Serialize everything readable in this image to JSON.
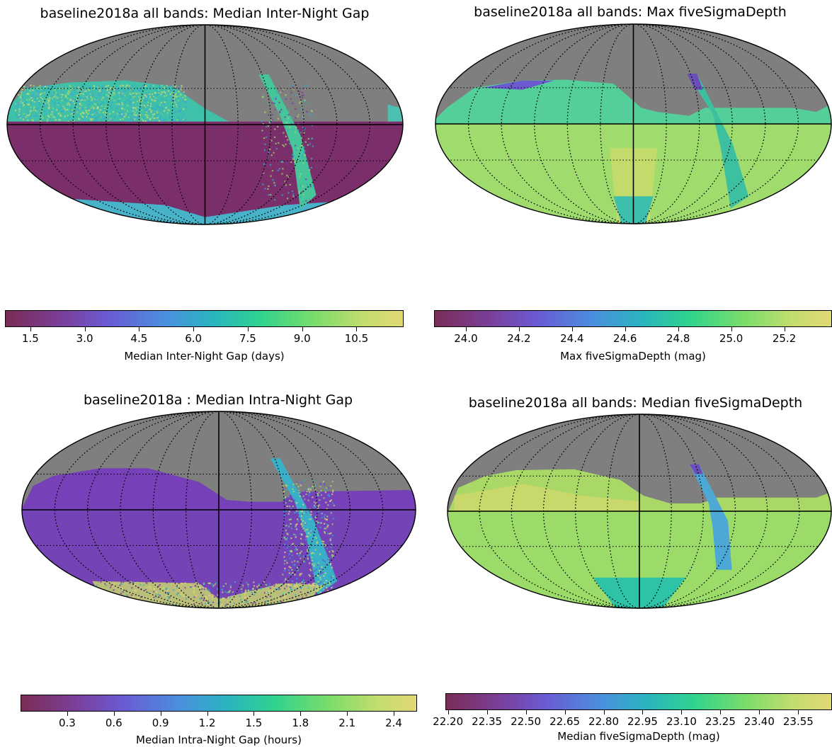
{
  "figure": {
    "domain": "Chart"
  },
  "chart_data": [
    {
      "type": "heatmap",
      "projection": "mollweide",
      "title": "baseline2018a all bands: Median Inter-Night Gap",
      "colorbar_label": "Median Inter-Night Gap (days)",
      "colorbar_ticks": [
        "1.5",
        "3.0",
        "4.5",
        "6.0",
        "7.5",
        "9.0",
        "10.5"
      ],
      "color_range": [
        0.8,
        11.8
      ],
      "colormap": "viridis-like",
      "grid": true,
      "no_data_color": "#7f7f7f",
      "regions": {
        "south_wfd": "1.5",
        "north_ecliptic": "6.0-9.0",
        "galactic_plane_stripe": "7.5-9.0"
      }
    },
    {
      "type": "heatmap",
      "projection": "mollweide",
      "title": "baseline2018a all bands: Max fiveSigmaDepth",
      "colorbar_label": "Max fiveSigmaDepth (mag)",
      "colorbar_ticks": [
        "24.0",
        "24.2",
        "24.4",
        "24.6",
        "24.8",
        "25.0",
        "25.2"
      ],
      "color_range": [
        23.88,
        25.38
      ],
      "colormap": "viridis-like",
      "grid": true,
      "no_data_color": "#7f7f7f"
    },
    {
      "type": "heatmap",
      "projection": "mollweide",
      "title": "baseline2018a : Median Intra-Night Gap",
      "colorbar_label": "Median Intra-Night Gap (hours)",
      "colorbar_ticks": [
        "0.3",
        "0.6",
        "0.9",
        "1.2",
        "1.5",
        "1.8",
        "2.1",
        "2.4"
      ],
      "color_range": [
        0.0,
        2.55
      ],
      "colormap": "viridis-like",
      "grid": true,
      "no_data_color": "#7f7f7f"
    },
    {
      "type": "heatmap",
      "projection": "mollweide",
      "title": "baseline2018a all bands: Median fiveSigmaDepth",
      "colorbar_label": "Median fiveSigmaDepth (mag)",
      "colorbar_ticks": [
        "22.20",
        "22.35",
        "22.50",
        "22.65",
        "22.80",
        "22.95",
        "23.10",
        "23.25",
        "23.40",
        "23.55"
      ],
      "color_range": [
        22.19,
        23.68
      ],
      "colormap": "viridis-like",
      "grid": true,
      "no_data_color": "#7f7f7f"
    }
  ]
}
